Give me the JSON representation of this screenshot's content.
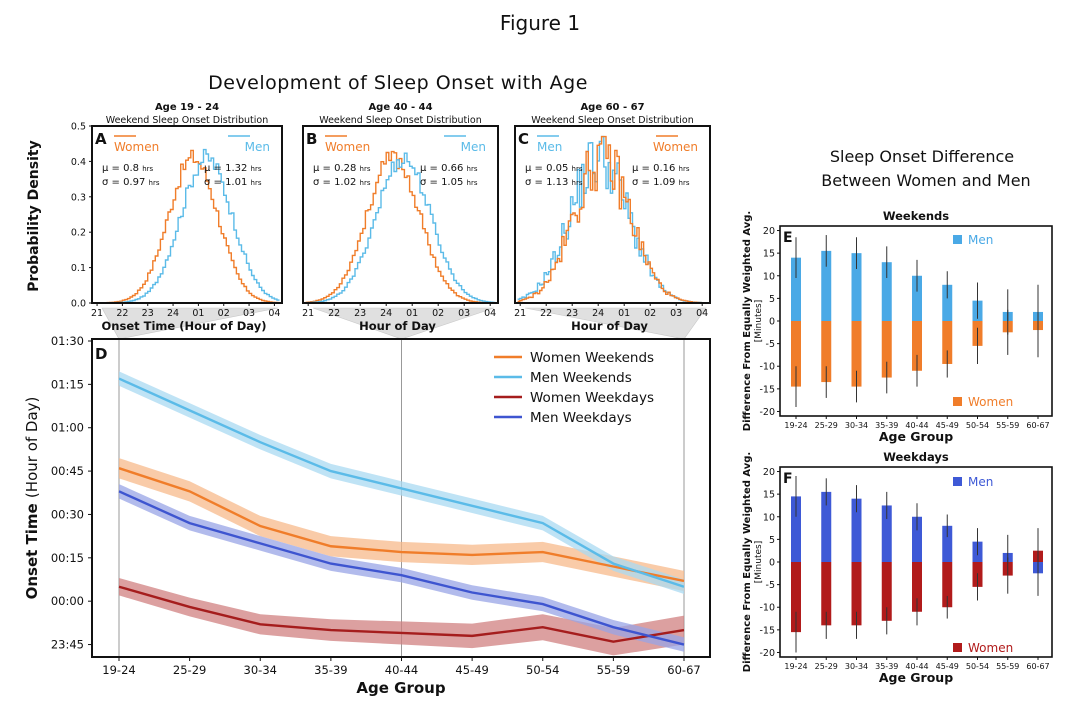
{
  "figure_title": "Figure 1",
  "top_title": "Development of Sleep Onset with Age",
  "left_ylabel": "Probability Density",
  "colors": {
    "women_weekends": "#f07d2a",
    "men_weekends": "#5bbbe8",
    "women_weekdays": "#a51d1d",
    "men_weekdays": "#3e55d0",
    "fill_women_weekends": "#f7b98b",
    "fill_men_weekends": "#a9d9f2",
    "fill_women_weekdays": "#d08080",
    "fill_men_weekdays": "#98a4e6"
  },
  "chart_data": [
    {
      "id": "A",
      "type": "histogram",
      "group_title": "Age 19 - 24",
      "subtitle": "Weekend Sleep Onset Distribution",
      "xlabel": "Onset Time (Hour of Day)",
      "xticks": [
        "21",
        "22",
        "23",
        "24",
        "01",
        "02",
        "03",
        "04"
      ],
      "ylim": [
        0,
        0.5
      ],
      "yticks": [
        "0.0",
        "0.1",
        "0.2",
        "0.3",
        "0.4",
        "0.5"
      ],
      "series": [
        {
          "name": "Women",
          "mu": "μ = 0.8",
          "sigma": "σ = 0.97",
          "mean": 0.8,
          "sd": 0.97
        },
        {
          "name": "Men",
          "mu": "μ = 1.32",
          "sigma": "σ = 1.01",
          "mean": 1.32,
          "sd": 1.01
        }
      ],
      "legend_order": [
        "Women",
        "Men"
      ],
      "unit": "hrs"
    },
    {
      "id": "B",
      "type": "histogram",
      "group_title": "Age 40 - 44",
      "subtitle": "Weekend Sleep Onset Distribution",
      "xlabel": "Hour of Day",
      "xticks": [
        "21",
        "22",
        "23",
        "24",
        "01",
        "02",
        "03",
        "04"
      ],
      "ylim": [
        0,
        0.5
      ],
      "series": [
        {
          "name": "Women",
          "mu": "μ = 0.28",
          "sigma": "σ = 1.02",
          "mean": 0.28,
          "sd": 1.02
        },
        {
          "name": "Men",
          "mu": "μ = 0.66",
          "sigma": "σ = 1.05",
          "mean": 0.66,
          "sd": 1.05
        }
      ],
      "legend_order": [
        "Women",
        "Men"
      ],
      "unit": "hrs"
    },
    {
      "id": "C",
      "type": "histogram",
      "group_title": "Age 60 - 67",
      "subtitle": "Weekend Sleep Onset Distribution",
      "xlabel": "Hour of Day",
      "xticks": [
        "21",
        "22",
        "23",
        "24",
        "01",
        "02",
        "03",
        "04"
      ],
      "ylim": [
        0,
        0.5
      ],
      "series": [
        {
          "name": "Men",
          "mu": "μ = 0.05",
          "sigma": "σ = 1.13",
          "mean": 0.05,
          "sd": 1.13
        },
        {
          "name": "Women",
          "mu": "μ = 0.16",
          "sigma": "σ = 1.09",
          "mean": 0.16,
          "sd": 1.09
        }
      ],
      "legend_order": [
        "Men",
        "Women"
      ],
      "unit": "hrs"
    },
    {
      "id": "D",
      "type": "line",
      "xlabel": "Age Group",
      "ylabel": "Onset Time",
      "ylabel_unit": "(Hour of Day)",
      "categories": [
        "19-24",
        "25-29",
        "30-34",
        "35-39",
        "40-44",
        "45-49",
        "50-54",
        "55-59",
        "60-67"
      ],
      "ylim": [
        -20,
        90
      ],
      "yticks": [
        {
          "v": 90,
          "label": "01:30"
        },
        {
          "v": 75,
          "label": "01:15"
        },
        {
          "v": 60,
          "label": "01:00"
        },
        {
          "v": 45,
          "label": "00:45"
        },
        {
          "v": 30,
          "label": "00:30"
        },
        {
          "v": 15,
          "label": "00:15"
        },
        {
          "v": 0,
          "label": "00:00"
        },
        {
          "v": -15,
          "label": "23:45"
        }
      ],
      "series": [
        {
          "name": "Women Weekends",
          "values": [
            46,
            38,
            26,
            19,
            17,
            16,
            17,
            12,
            7
          ],
          "band": 3
        },
        {
          "name": "Men Weekends",
          "values": [
            77,
            66,
            55,
            45,
            39,
            33,
            27,
            13,
            5
          ],
          "band": 2
        },
        {
          "name": "Women Weekdays",
          "values": [
            5,
            -2,
            -8,
            -10,
            -11,
            -12,
            -9,
            -14,
            -10
          ],
          "band": 3
        },
        {
          "name": "Men Weekdays",
          "values": [
            38,
            27,
            20,
            13,
            9,
            3,
            -1,
            -9,
            -15
          ],
          "band": 2
        }
      ]
    },
    {
      "id": "E",
      "type": "bar",
      "panel_title": "Weekends",
      "xlabel": "Age Group",
      "ylabel": "Difference From Equally Weighted Avg.",
      "ylabel_unit": "[Minutes]",
      "categories": [
        "19-24",
        "25-29",
        "30-34",
        "35-39",
        "40-44",
        "45-49",
        "50-54",
        "55-59",
        "60-67"
      ],
      "ylim": [
        -21,
        21
      ],
      "yticks": [
        20,
        15,
        10,
        5,
        0,
        -5,
        -10,
        -15,
        -20
      ],
      "series": [
        {
          "name": "Men",
          "values": [
            14,
            15.5,
            15,
            13,
            10,
            8,
            4.5,
            2,
            2
          ],
          "err": [
            4.5,
            3.5,
            3.5,
            3.5,
            3.5,
            3,
            4,
            5,
            6
          ]
        },
        {
          "name": "Women",
          "values": [
            -14.5,
            -13.5,
            -14.5,
            -12.5,
            -11,
            -9.5,
            -5.5,
            -2.5,
            -2
          ],
          "err": [
            4.5,
            3.5,
            3.5,
            3.5,
            3.5,
            3,
            4,
            5,
            6
          ]
        }
      ]
    },
    {
      "id": "F",
      "type": "bar",
      "panel_title": "Weekdays",
      "xlabel": "Age Group",
      "ylabel": "Difference From Equally Weighted Avg.",
      "ylabel_unit": "[Minutes]",
      "categories": [
        "19-24",
        "25-29",
        "30-34",
        "35-39",
        "40-44",
        "45-49",
        "50-54",
        "55-59",
        "60-67"
      ],
      "ylim": [
        -21,
        21
      ],
      "yticks": [
        20,
        15,
        10,
        5,
        0,
        -5,
        -10,
        -15,
        -20
      ],
      "series": [
        {
          "name": "Men",
          "values": [
            14.5,
            15.5,
            14,
            12.5,
            10,
            8,
            4.5,
            2,
            -2.5
          ],
          "err": [
            4.5,
            3,
            3,
            3,
            3,
            2.5,
            3,
            4,
            5
          ]
        },
        {
          "name": "Women",
          "values": [
            -15.5,
            -14,
            -14,
            -13,
            -11,
            -10,
            -5.5,
            -3,
            2.5
          ],
          "err": [
            4.5,
            3,
            3,
            3,
            3,
            2.5,
            3,
            4,
            5
          ]
        }
      ]
    }
  ],
  "right_title_line1": "Sleep Onset Difference",
  "right_title_line2": "Between Women and Men"
}
